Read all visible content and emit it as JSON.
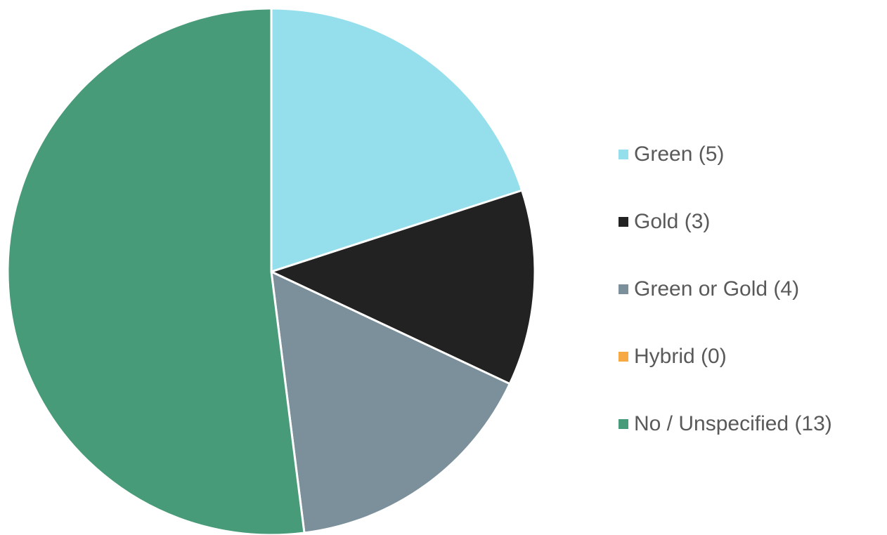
{
  "chart_data": {
    "type": "pie",
    "title": "",
    "categories": [
      "Green (5)",
      "Gold (3)",
      "Green or Gold (4)",
      "Hybrid (0)",
      "No / Unspecified (13)"
    ],
    "values": [
      5,
      3,
      4,
      0,
      13
    ],
    "colors": [
      "#95dfed",
      "#222222",
      "#7b909a",
      "#f7a944",
      "#489b78"
    ],
    "start_angle": "12 o'clock",
    "direction": "clockwise",
    "slice_border_color": "#ffffff",
    "legend_position": "right",
    "legend": [
      {
        "label": "Green (5)",
        "color": "#95dfed"
      },
      {
        "label": "Gold (3)",
        "color": "#222222"
      },
      {
        "label": "Green or Gold (4)",
        "color": "#7b909a"
      },
      {
        "label": "Hybrid (0)",
        "color": "#f7a944"
      },
      {
        "label": "No / Unspecified (13)",
        "color": "#489b78"
      }
    ]
  }
}
